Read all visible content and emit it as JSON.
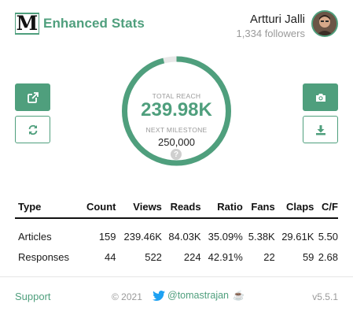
{
  "app": {
    "title": "Enhanced Stats",
    "logo_letter": "M",
    "accent_color": "#4f9f7d"
  },
  "user": {
    "name": "Artturi Jalli",
    "followers": "1,334 followers"
  },
  "buttons": {
    "open_external_icon": "external-link-icon",
    "refresh_icon": "refresh-icon",
    "screenshot_icon": "camera-icon",
    "download_icon": "download-icon"
  },
  "reach": {
    "label": "TOTAL REACH",
    "value": "239.98K",
    "milestone_label": "NEXT MILESTONE",
    "milestone_value": "250,000",
    "progress": 0.9599
  },
  "table": {
    "headers": [
      "Type",
      "Count",
      "Views",
      "Reads",
      "Ratio",
      "Fans",
      "Claps",
      "C/F"
    ],
    "rows": [
      [
        "Articles",
        "159",
        "239.46K",
        "84.03K",
        "35.09%",
        "5.38K",
        "29.61K",
        "5.50"
      ],
      [
        "Responses",
        "44",
        "522",
        "224",
        "42.91%",
        "22",
        "59",
        "2.68"
      ]
    ]
  },
  "footer": {
    "support": "Support",
    "copyright": "© 2021",
    "twitter_handle": "@tomastrajan",
    "coffee": "☕",
    "version": "v5.5.1"
  }
}
